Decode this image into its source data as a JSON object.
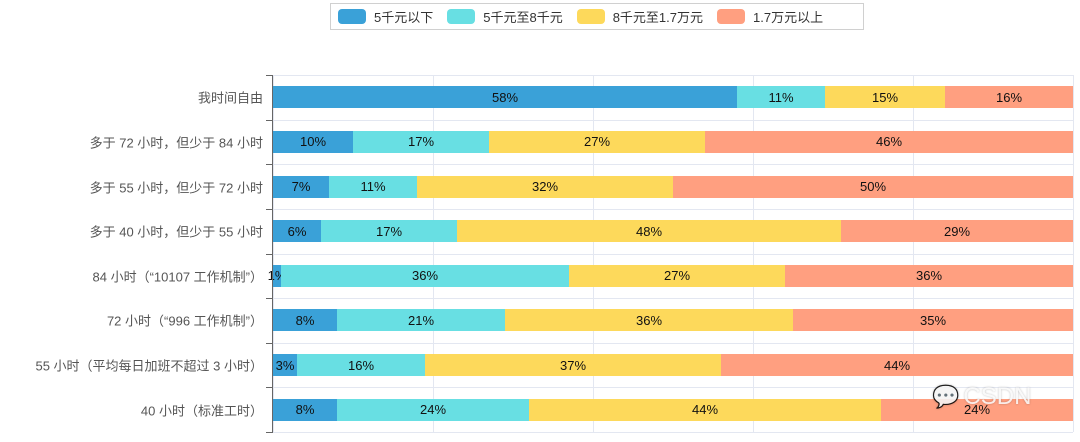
{
  "legend": [
    {
      "label": "5千元以下",
      "color": "#3aa1d8"
    },
    {
      "label": "5千元至8千元",
      "color": "#68dfe3"
    },
    {
      "label": "8千元至1.7万元",
      "color": "#fdd95b"
    },
    {
      "label": "1.7万元以上",
      "color": "#ff9f80"
    }
  ],
  "watermark": {
    "icon": "wechat-icon",
    "text": "CSDN"
  },
  "chart_data": {
    "type": "bar",
    "orientation": "horizontal",
    "stacked": true,
    "title": "",
    "xlabel": "",
    "ylabel": "",
    "xlim": [
      0,
      100
    ],
    "grid": true,
    "legend_position": "top",
    "categories": [
      "我时间自由",
      "多于 72 小时，但少于 84 小时",
      "多于 55 小时，但少于 72 小时",
      "多于 40 小时，但少于 55 小时",
      "84 小时（“10107 工作机制”）",
      "72 小时（“996 工作机制”）",
      "55 小时（平均每日加班不超过 3 小时）",
      "40 小时（标准工时）"
    ],
    "series": [
      {
        "name": "5千元以下",
        "color": "#3aa1d8",
        "values": [
          58,
          10,
          7,
          6,
          1,
          8,
          3,
          8
        ]
      },
      {
        "name": "5千元至8千元",
        "color": "#68dfe3",
        "values": [
          11,
          17,
          11,
          17,
          36,
          21,
          16,
          24
        ]
      },
      {
        "name": "8千元至1.7万元",
        "color": "#fdd95b",
        "values": [
          15,
          27,
          32,
          48,
          27,
          36,
          37,
          44
        ]
      },
      {
        "name": "1.7万元以上",
        "color": "#ff9f80",
        "values": [
          16,
          46,
          50,
          29,
          36,
          35,
          44,
          24
        ]
      }
    ],
    "labels": [
      [
        "58%",
        "11%",
        "15%",
        "16%"
      ],
      [
        "10%",
        "17%",
        "27%",
        "46%"
      ],
      [
        "7%",
        "11%",
        "32%",
        "50%"
      ],
      [
        "6%",
        "17%",
        "48%",
        "29%"
      ],
      [
        "1%",
        "36%",
        "27%",
        "36%"
      ],
      [
        "8%",
        "21%",
        "36%",
        "35%"
      ],
      [
        "3%",
        "16%",
        "37%",
        "44%"
      ],
      [
        "8%",
        "24%",
        "44%",
        "24%"
      ]
    ]
  }
}
